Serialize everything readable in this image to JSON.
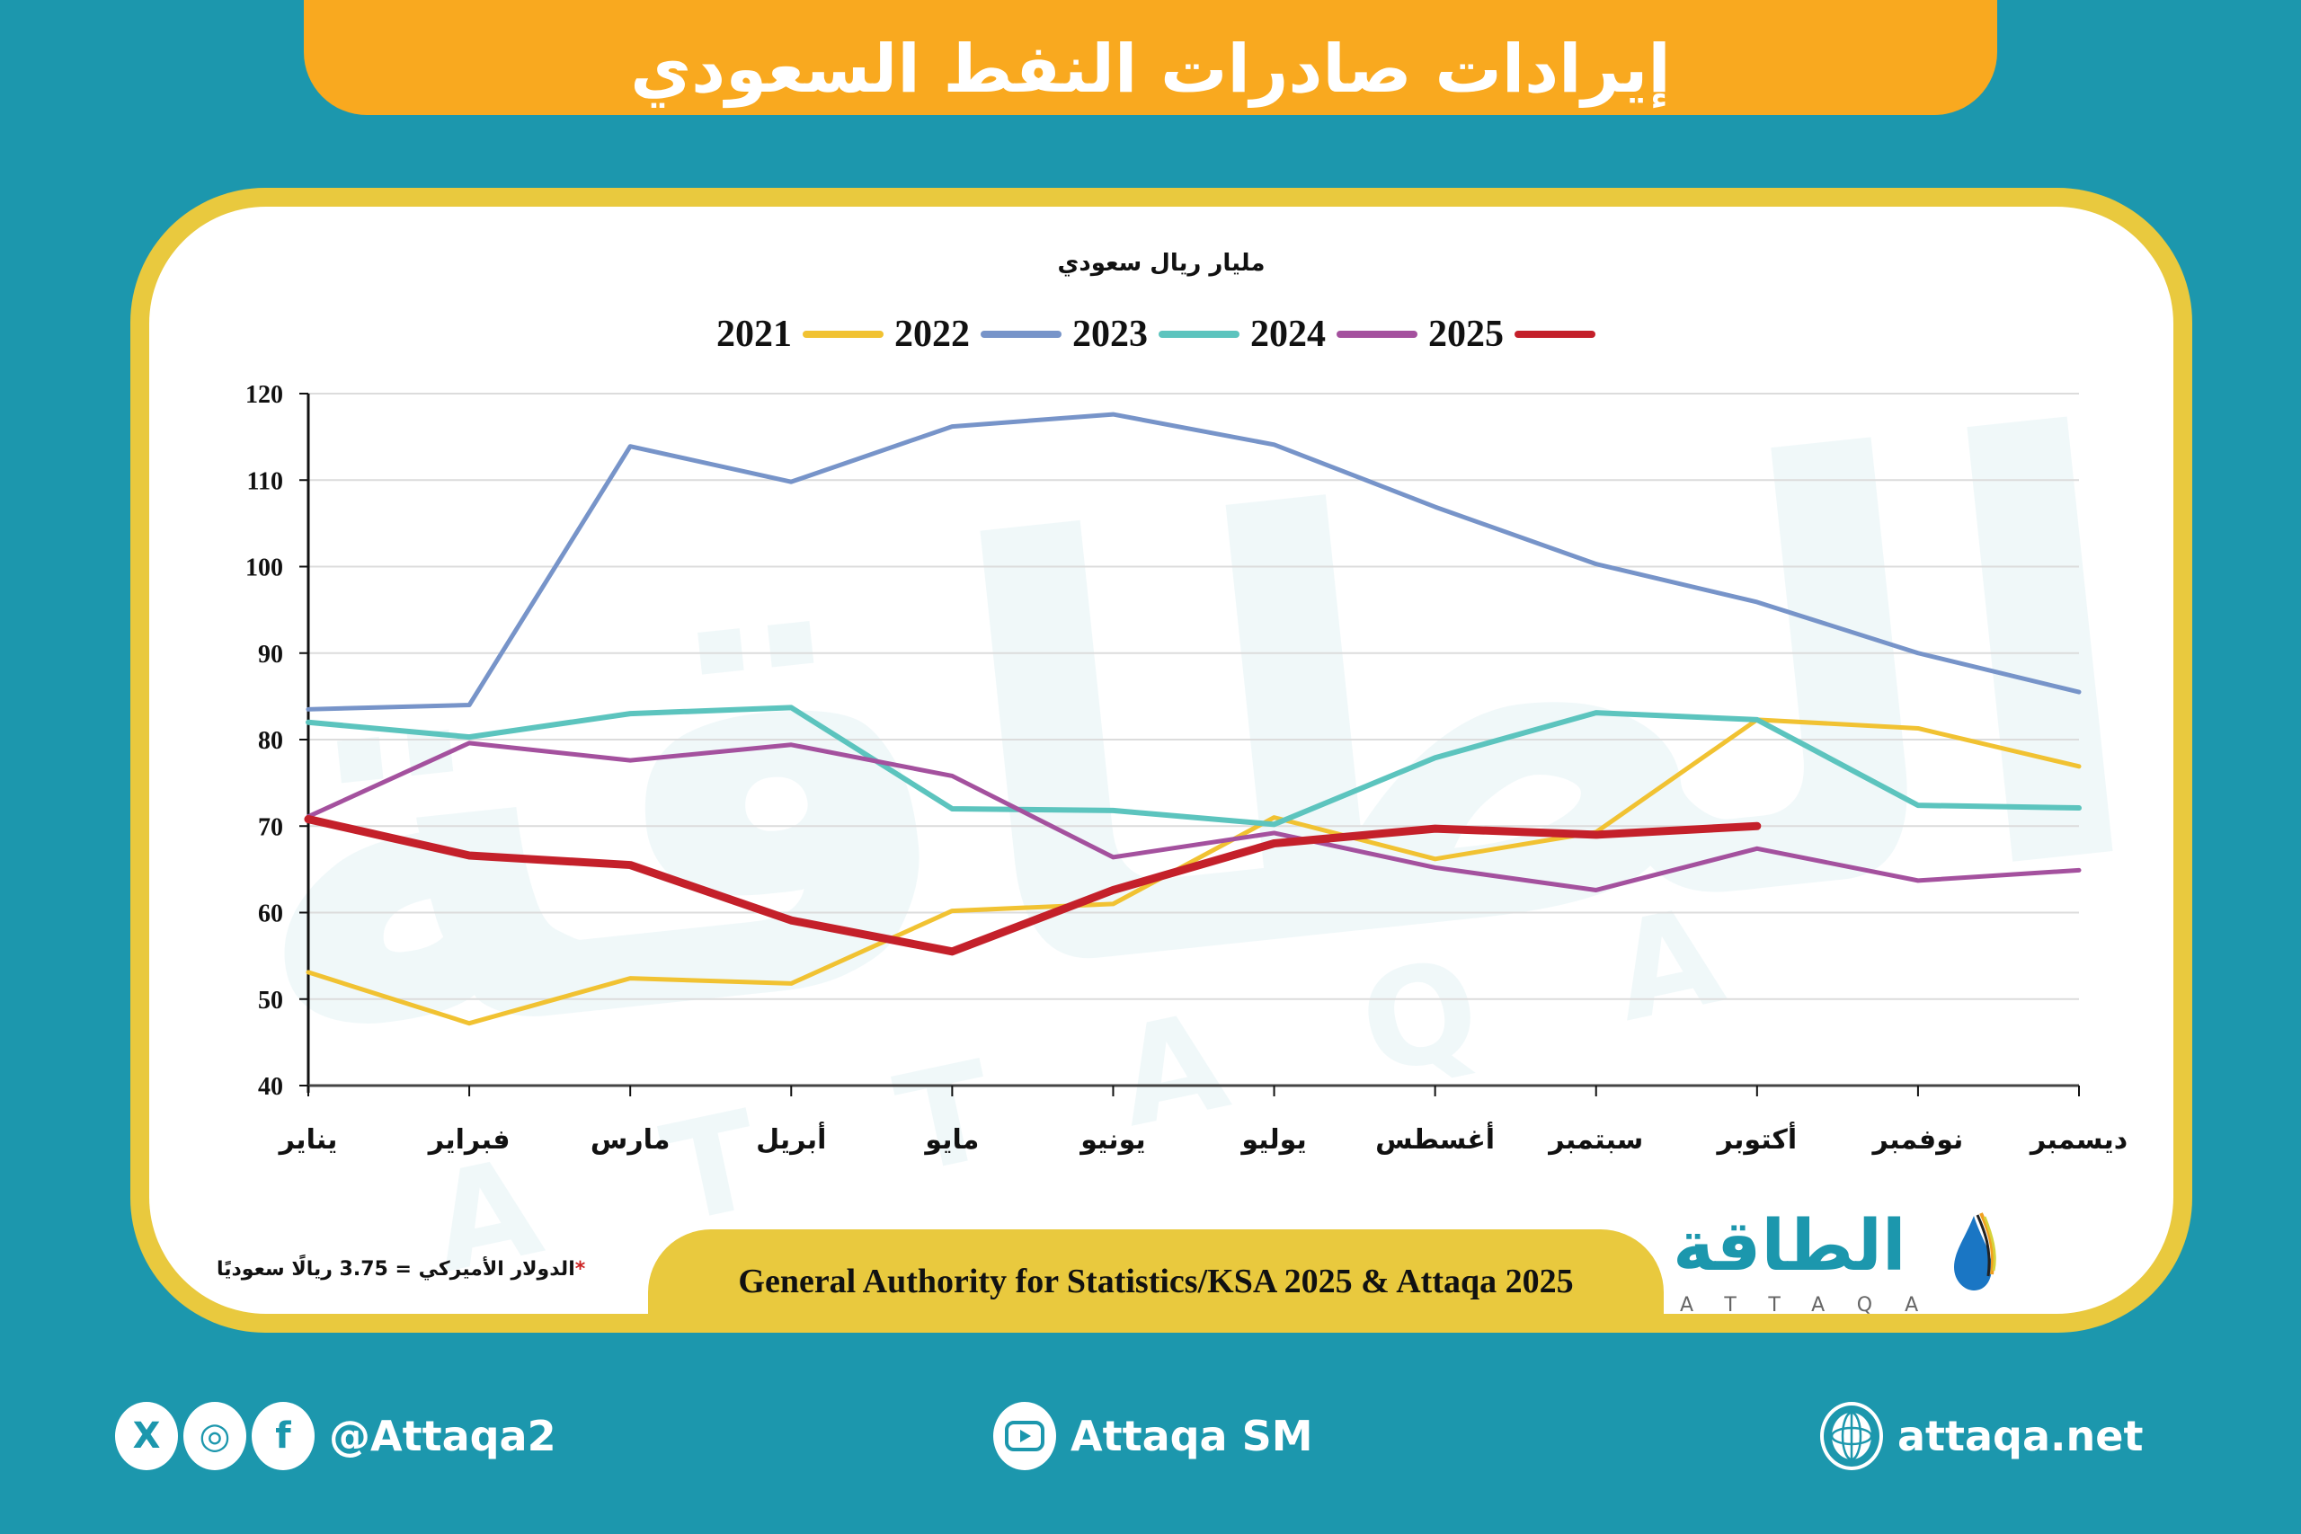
{
  "header": {
    "title": "إيرادات صادرات النفط السعودي"
  },
  "chart_data": {
    "type": "line",
    "title": "إيرادات صادرات النفط السعودي",
    "subtitle": "مليار ريال سعودي",
    "xlabel": "",
    "ylabel": "مليار ريال سعودي",
    "ylim": [
      40,
      120
    ],
    "yticks": [
      40,
      50,
      60,
      70,
      80,
      90,
      100,
      110,
      120
    ],
    "grid": true,
    "legend_position": "top",
    "categories": [
      "يناير",
      "فبراير",
      "مارس",
      "أبريل",
      "مايو",
      "يونيو",
      "يوليو",
      "أغسطس",
      "سبتمبر",
      "أكتوبر",
      "نوفمبر",
      "ديسمبر"
    ],
    "series": [
      {
        "name": "2021",
        "color": "#f1c232",
        "width": 5,
        "values": [
          53.1,
          47.2,
          52.4,
          51.8,
          60.2,
          61.0,
          71.0,
          66.2,
          69.3,
          82.3,
          81.3,
          76.9
        ]
      },
      {
        "name": "2022",
        "color": "#7794c9",
        "width": 5,
        "values": [
          83.5,
          84.0,
          113.9,
          109.8,
          116.2,
          117.6,
          114.1,
          106.9,
          100.3,
          95.9,
          90.0,
          85.5
        ]
      },
      {
        "name": "2023",
        "color": "#5cc4be",
        "width": 6,
        "values": [
          82.0,
          80.3,
          83.0,
          83.7,
          72.0,
          71.8,
          70.2,
          77.9,
          83.1,
          82.3,
          72.4,
          72.1
        ]
      },
      {
        "name": "2024",
        "color": "#a4519e",
        "width": 5,
        "values": [
          71.1,
          79.6,
          77.6,
          79.4,
          75.8,
          66.4,
          69.2,
          65.2,
          62.6,
          67.4,
          63.7,
          64.9
        ]
      },
      {
        "name": "2025",
        "color": "#c4202a",
        "width": 9,
        "values": [
          70.8,
          66.6,
          65.5,
          59.1,
          55.5,
          62.6,
          68.0,
          69.7,
          69.0,
          70.0
        ]
      }
    ]
  },
  "chart": {
    "unit_label": "مليار ريال سعودي",
    "legend": [
      {
        "label": "2021",
        "color": "#f1c232"
      },
      {
        "label": "2022",
        "color": "#7794c9"
      },
      {
        "label": "2023",
        "color": "#5cc4be"
      },
      {
        "label": "2024",
        "color": "#a4519e"
      },
      {
        "label": "2025",
        "color": "#c4202a"
      }
    ]
  },
  "note": {
    "star": "*",
    "text": "الدولار الأميركي = 3.75 ريالًا سعوديًا"
  },
  "source": {
    "text": "General Authority for Statistics/KSA 2025 & Attaqa 2025"
  },
  "logo": {
    "arabic": "الطاقة",
    "english": "ATTAQA"
  },
  "footer": {
    "social_handle": "@Attaqa2",
    "youtube": "Attaqa SM",
    "website": "attaqa.net",
    "icons": {
      "x": "X",
      "instagram": "◎",
      "facebook": "f"
    }
  },
  "colors": {
    "background": "#1c97ad",
    "title_bar": "#f9a91f",
    "card_border": "#e9c93e"
  }
}
